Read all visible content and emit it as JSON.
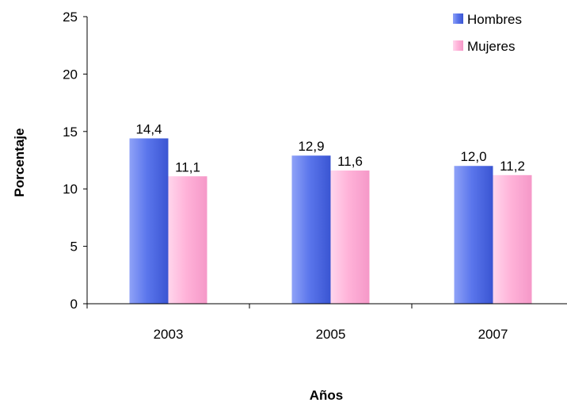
{
  "chart_data": {
    "type": "bar",
    "title": "",
    "xlabel": "Años",
    "ylabel": "Porcentaje",
    "categories": [
      "2003",
      "2005",
      "2007"
    ],
    "ylim": [
      0,
      25
    ],
    "yticks": [
      0,
      5,
      10,
      15,
      20,
      25
    ],
    "grid": false,
    "legend_position": "top-right",
    "series": [
      {
        "name": "Hombres",
        "values": [
          14.4,
          12.9,
          12.0
        ],
        "labels": [
          "14,4",
          "12,9",
          "12,0"
        ],
        "color": "#5b76ec"
      },
      {
        "name": "Mujeres",
        "values": [
          11.1,
          11.6,
          11.2
        ],
        "labels": [
          "11,1",
          "11,6",
          "11,2"
        ],
        "color": "#ffb3d9"
      }
    ]
  }
}
